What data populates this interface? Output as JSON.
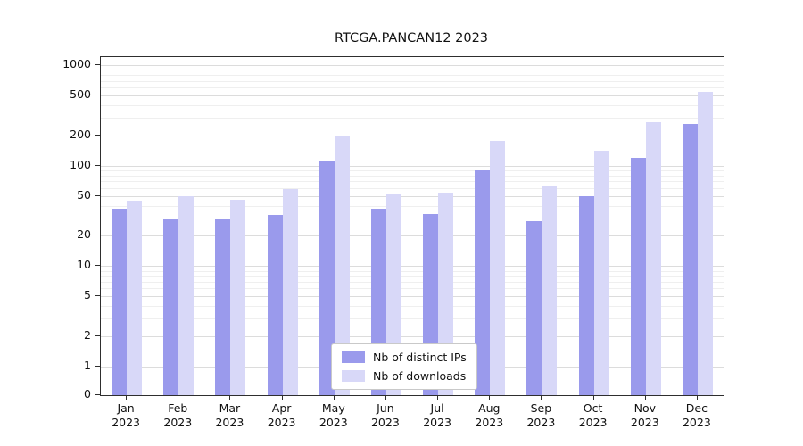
{
  "chart_data": {
    "type": "bar",
    "title": "RTCGA.PANCAN12 2023",
    "categories": [
      "Jan 2023",
      "Feb 2023",
      "Mar 2023",
      "Apr 2023",
      "May 2023",
      "Jun 2023",
      "Jul 2023",
      "Aug 2023",
      "Sep 2023",
      "Oct 2023",
      "Nov 2023",
      "Dec 2023"
    ],
    "series": [
      {
        "name": "Nb of distinct IPs",
        "color": "#9a9aec",
        "values": [
          37,
          30,
          30,
          32,
          110,
          37,
          33,
          90,
          28,
          50,
          120,
          260
        ]
      },
      {
        "name": "Nb of downloads",
        "color": "#d8d8f8",
        "values": [
          45,
          50,
          46,
          58,
          200,
          52,
          54,
          175,
          62,
          140,
          270,
          540
        ]
      }
    ],
    "xlabel": "",
    "ylabel": "",
    "yscale": "symlog",
    "yticks": [
      0,
      1,
      2,
      5,
      10,
      20,
      50,
      100,
      200,
      500,
      1000
    ],
    "ylim": [
      0,
      1000
    ],
    "grid": true,
    "legend_position": "lower center inside plot"
  },
  "colors": {
    "background": "#ffffff",
    "major_grid": "#dcdcdc",
    "minor_grid": "#efefef",
    "axis": "#2e2e2e"
  }
}
